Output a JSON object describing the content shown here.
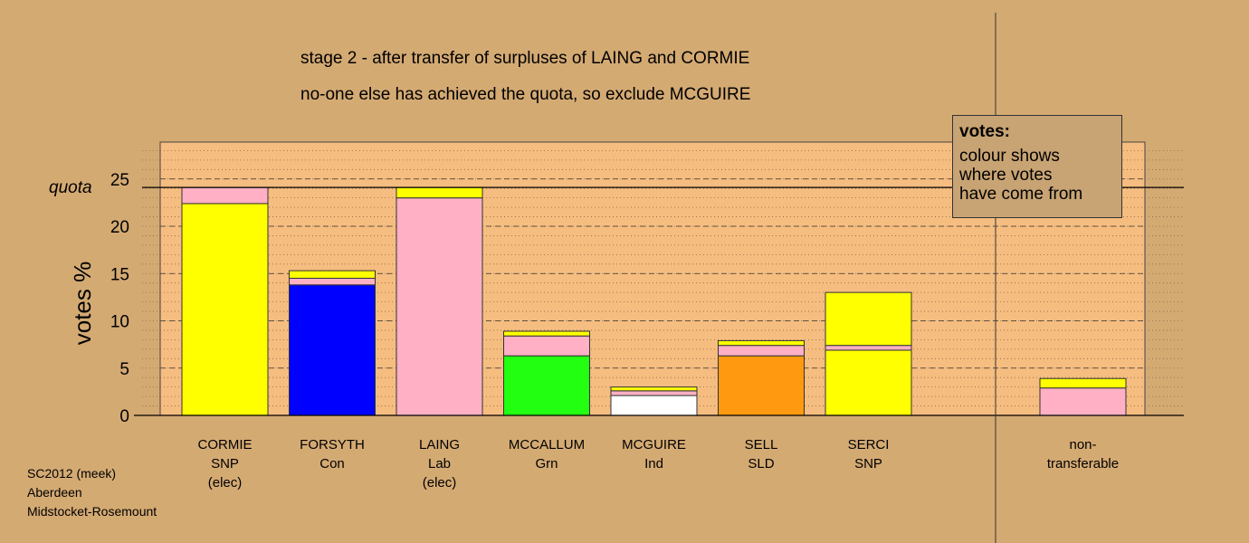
{
  "title_lines": [
    "stage 2 - after transfer of surpluses of LAING and CORMIE",
    "no-one else has achieved the quota, so exclude MCGUIRE"
  ],
  "legend": {
    "title": "votes:",
    "lines": [
      "colour shows",
      "where votes",
      "have come from"
    ]
  },
  "footer": [
    "SC2012 (meek)",
    "Aberdeen",
    "Midstocket-Rosemount"
  ],
  "chart_data": {
    "type": "bar",
    "stacked": true,
    "ylabel": "votes %",
    "ylim": [
      0,
      29
    ],
    "yticks": [
      0,
      5,
      10,
      15,
      20,
      25
    ],
    "quota": 24.1,
    "quota_label": "quota",
    "categories": [
      {
        "name": "CORMIE",
        "party": "SNP",
        "note": "(elec)"
      },
      {
        "name": "FORSYTH",
        "party": "Con",
        "note": ""
      },
      {
        "name": "LAING",
        "party": "Lab",
        "note": "(elec)"
      },
      {
        "name": "MCCALLUM",
        "party": "Grn",
        "note": ""
      },
      {
        "name": "MCGUIRE",
        "party": "Ind",
        "note": ""
      },
      {
        "name": "SELL",
        "party": "SLD",
        "note": ""
      },
      {
        "name": "SERCI",
        "party": "SNP",
        "note": ""
      },
      {
        "name": "",
        "party": "",
        "note": ""
      },
      {
        "name": "non-",
        "party": "transferable",
        "note": ""
      }
    ],
    "segments": [
      [
        {
          "color": "#FFFF00",
          "value": 22.4
        },
        {
          "color": "#FFB0C4",
          "value": 1.7
        }
      ],
      [
        {
          "color": "#0000FF",
          "value": 13.8
        },
        {
          "color": "#FFB0C4",
          "value": 0.7
        },
        {
          "color": "#FFFF00",
          "value": 0.8
        }
      ],
      [
        {
          "color": "#FFB0C4",
          "value": 23.0
        },
        {
          "color": "#FFFF00",
          "value": 1.1
        }
      ],
      [
        {
          "color": "#22FF11",
          "value": 6.3
        },
        {
          "color": "#FFB0C4",
          "value": 2.1
        },
        {
          "color": "#FFFF00",
          "value": 0.5
        }
      ],
      [
        {
          "color": "#FFFFFF",
          "value": 2.1
        },
        {
          "color": "#FFB0C4",
          "value": 0.5
        },
        {
          "color": "#FFFF00",
          "value": 0.4
        }
      ],
      [
        {
          "color": "#FF9A10",
          "value": 6.3
        },
        {
          "color": "#FFB0C4",
          "value": 1.1
        },
        {
          "color": "#FFFF00",
          "value": 0.5
        }
      ],
      [
        {
          "color": "#FFFF00",
          "value": 6.9
        },
        {
          "color": "#FFB0C4",
          "value": 0.5
        },
        {
          "color": "#FFFF00",
          "value": 5.6
        }
      ],
      [],
      [
        {
          "color": "#FFB0C4",
          "value": 2.9
        },
        {
          "color": "#FFFF00",
          "value": 1.0
        }
      ]
    ],
    "plot_bg": "#F6BD80",
    "page_bg": "#D4AA73"
  }
}
